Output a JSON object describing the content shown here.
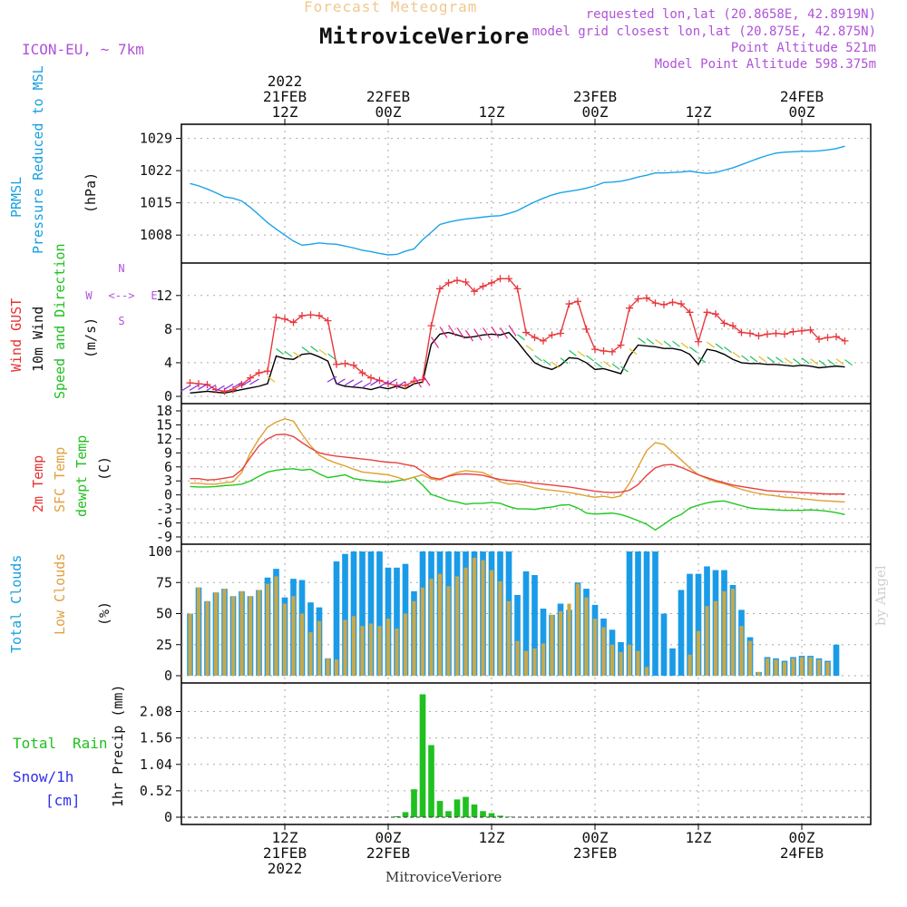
{
  "header": {
    "subtitle": "Forecast Meteogram",
    "title": "MitroviceVeriore",
    "model": "ICON-EU, ~ 7km",
    "requested": "requested lon,lat (20.8658E, 42.8919N)",
    "closest": "closest lon,lat (20.875E, 42.875N)",
    "closest_prefix": "model grid",
    "point_alt": "Point Altitude 521m",
    "model_alt": "Model Point Altitude 598.375m"
  },
  "footer": {
    "location": "MitroviceVeriore",
    "watermark": "by Angel"
  },
  "colors": {
    "pressure": "#1aa3e8",
    "gust": "#e8383c",
    "wind": "#000000",
    "temp2m": "#e84040",
    "sfc": "#e0a030",
    "dewpt": "#20c820",
    "total_clouds": "#1a9be8",
    "low_clouds": "#c8a84a",
    "rain": "#20c020",
    "snow": "#3030e8",
    "label_blue": "#18a0e0",
    "label_red": "#e83030",
    "label_green": "#20c020",
    "label_orange": "#e0a040"
  },
  "time_axis": {
    "top_labels": [
      {
        "lines": [
          "2022",
          "21FEB",
          "12Z"
        ],
        "hour": 12
      },
      {
        "lines": [
          "22FEB",
          "00Z"
        ],
        "hour": 24
      },
      {
        "lines": [
          "12Z"
        ],
        "hour": 36
      },
      {
        "lines": [
          "23FEB",
          "00Z"
        ],
        "hour": 48
      },
      {
        "lines": [
          "12Z"
        ],
        "hour": 60
      },
      {
        "lines": [
          "24FEB",
          "00Z"
        ],
        "hour": 72
      }
    ],
    "bottom_labels": [
      {
        "lines": [
          "12Z",
          "21FEB",
          "2022"
        ],
        "hour": 12
      },
      {
        "lines": [
          "00Z",
          "22FEB"
        ],
        "hour": 24
      },
      {
        "lines": [
          "12Z"
        ],
        "hour": 36
      },
      {
        "lines": [
          "00Z",
          "23FEB"
        ],
        "hour": 48
      },
      {
        "lines": [
          "12Z"
        ],
        "hour": 60
      },
      {
        "lines": [
          "00Z",
          "24FEB"
        ],
        "hour": 72
      }
    ]
  },
  "chart_data": [
    {
      "type": "line",
      "panel": "pressure",
      "labels": [
        "PRMSL",
        "Pressure Reduced to MSL",
        "(hPa)"
      ],
      "yticks": [
        1008,
        1015,
        1022,
        1029
      ],
      "ylim": [
        1003.5,
        1030.5
      ],
      "x": [
        1,
        2,
        3,
        4,
        5,
        6,
        7,
        8,
        9,
        10,
        11,
        12,
        13,
        14,
        15,
        16,
        17,
        18,
        19,
        20,
        21,
        22,
        23,
        24,
        25,
        26,
        27,
        28,
        29,
        30,
        31,
        32,
        33,
        34,
        35,
        36,
        37,
        38,
        39,
        40,
        41,
        42,
        43,
        44,
        45,
        46,
        47,
        48,
        49,
        50,
        51,
        52,
        53,
        54,
        55,
        56,
        57,
        58,
        59,
        60,
        61,
        62,
        63,
        64,
        65,
        66,
        67,
        68,
        69,
        70,
        71,
        72,
        73,
        74,
        75,
        76,
        77
      ],
      "values": [
        1019.2,
        1018.7,
        1018.0,
        1017.2,
        1016.3,
        1016.0,
        1015.4,
        1014.0,
        1012.4,
        1010.7,
        1009.3,
        1008.0,
        1006.7,
        1005.8,
        1006.0,
        1006.3,
        1006.1,
        1006.0,
        1005.6,
        1005.2,
        1004.7,
        1004.4,
        1004.0,
        1003.7,
        1003.8,
        1004.5,
        1005.0,
        1007.0,
        1008.6,
        1010.3,
        1010.8,
        1011.2,
        1011.5,
        1011.7,
        1011.9,
        1012.1,
        1012.2,
        1012.7,
        1013.3,
        1014.3,
        1015.2,
        1016.0,
        1016.7,
        1017.2,
        1017.5,
        1017.8,
        1018.2,
        1018.7,
        1019.4,
        1019.5,
        1019.7,
        1020.1,
        1020.6,
        1021.0,
        1021.5,
        1021.5,
        1021.6,
        1021.7,
        1021.9,
        1021.6,
        1021.4,
        1021.6,
        1022.1,
        1022.6,
        1023.3,
        1024.0,
        1024.7,
        1025.3,
        1025.8,
        1026.0,
        1026.1,
        1026.2,
        1026.2,
        1026.3,
        1026.5,
        1026.8,
        1027.3
      ]
    },
    {
      "type": "line",
      "panel": "wind",
      "labels": [
        "Wind GUST",
        "10m Wind",
        "Speed and Direction",
        "(m/s)"
      ],
      "compass": {
        "n": "N",
        "s": "S",
        "e": "E",
        "w": "W"
      },
      "yticks": [
        0,
        4,
        8,
        12
      ],
      "ylim": [
        0,
        15
      ],
      "x": [
        1,
        2,
        3,
        4,
        5,
        6,
        7,
        8,
        9,
        10,
        11,
        12,
        13,
        14,
        15,
        16,
        17,
        18,
        19,
        20,
        21,
        22,
        23,
        24,
        25,
        26,
        27,
        28,
        29,
        30,
        31,
        32,
        33,
        34,
        35,
        36,
        37,
        38,
        39,
        40,
        41,
        42,
        43,
        44,
        45,
        46,
        47,
        48,
        49,
        50,
        51,
        52,
        53,
        54,
        55,
        56,
        57,
        58,
        59,
        60,
        61,
        62,
        63,
        64,
        65,
        66,
        67,
        68,
        69,
        70,
        71,
        72,
        73,
        74,
        75,
        76,
        77
      ],
      "series": [
        {
          "name": "Wind GUST",
          "values": [
            1.6,
            1.5,
            1.4,
            0.8,
            0.6,
            0.8,
            1.4,
            2.2,
            2.8,
            3.0,
            9.4,
            9.2,
            8.8,
            9.6,
            9.7,
            9.6,
            9.0,
            3.8,
            3.9,
            3.7,
            2.8,
            2.2,
            1.9,
            1.5,
            1.3,
            1.3,
            1.8,
            2.0,
            8.4,
            12.8,
            13.5,
            13.8,
            13.6,
            12.5,
            13.1,
            13.5,
            14.0,
            14.0,
            12.8,
            7.6,
            7.0,
            6.6,
            7.3,
            7.5,
            11.0,
            11.3,
            8.0,
            5.6,
            5.4,
            5.3,
            6.1,
            10.5,
            11.6,
            11.7,
            11.1,
            10.9,
            11.2,
            11.0,
            10.0,
            6.5,
            10.0,
            9.8,
            8.7,
            8.4,
            7.6,
            7.5,
            7.2,
            7.4,
            7.5,
            7.4,
            7.7,
            7.8,
            7.9,
            6.8,
            7.0,
            7.1,
            6.6
          ]
        },
        {
          "name": "10m Wind",
          "values": [
            0.4,
            0.5,
            0.6,
            0.5,
            0.4,
            0.6,
            0.8,
            1.0,
            1.2,
            1.5,
            4.8,
            4.5,
            4.4,
            5.0,
            5.1,
            4.7,
            4.2,
            1.5,
            1.2,
            1.1,
            1.0,
            0.8,
            1.1,
            0.9,
            1.2,
            0.9,
            1.5,
            1.7,
            6.2,
            7.4,
            7.6,
            7.3,
            7.0,
            7.1,
            7.3,
            7.4,
            7.3,
            7.6,
            6.5,
            5.2,
            4.0,
            3.5,
            3.2,
            3.7,
            4.6,
            4.5,
            4.0,
            3.2,
            3.3,
            3.0,
            2.7,
            4.8,
            6.1,
            6.0,
            5.9,
            5.7,
            5.7,
            5.5,
            5.0,
            3.8,
            5.6,
            5.4,
            5.0,
            4.4,
            4.0,
            3.9,
            3.9,
            3.8,
            3.8,
            3.7,
            3.6,
            3.7,
            3.6,
            3.4,
            3.5,
            3.6,
            3.5
          ]
        }
      ]
    },
    {
      "type": "line",
      "panel": "temperature",
      "labels": [
        "2m Temp",
        "SFC Temp",
        "dewpt Temp",
        "(C)"
      ],
      "yticks": [
        -9,
        -6,
        -3,
        0,
        3,
        6,
        9,
        12,
        15,
        18
      ],
      "ylim": [
        -9,
        18
      ],
      "x": [
        1,
        2,
        3,
        4,
        5,
        6,
        7,
        8,
        9,
        10,
        11,
        12,
        13,
        14,
        15,
        16,
        17,
        18,
        19,
        20,
        21,
        22,
        23,
        24,
        25,
        26,
        27,
        28,
        29,
        30,
        31,
        32,
        33,
        34,
        35,
        36,
        37,
        38,
        39,
        40,
        41,
        42,
        43,
        44,
        45,
        46,
        47,
        48,
        49,
        50,
        51,
        52,
        53,
        54,
        55,
        56,
        57,
        58,
        59,
        60,
        61,
        62,
        63,
        64,
        65,
        66,
        67,
        68,
        69,
        70,
        71,
        72,
        73,
        74,
        75,
        76,
        77
      ],
      "series": [
        {
          "name": "2m Temp",
          "values": [
            3.5,
            3.5,
            3.2,
            3.3,
            3.6,
            3.9,
            5.4,
            8.0,
            10.5,
            12.0,
            12.9,
            13.0,
            12.5,
            11.2,
            10.0,
            9.0,
            8.6,
            8.3,
            8.1,
            7.9,
            7.7,
            7.5,
            7.2,
            7.0,
            6.9,
            6.5,
            6.2,
            5.0,
            3.7,
            3.4,
            4.0,
            4.4,
            4.5,
            4.4,
            4.2,
            3.7,
            3.3,
            3.1,
            2.9,
            2.7,
            2.5,
            2.3,
            2.1,
            1.9,
            1.7,
            1.4,
            1.1,
            0.8,
            0.6,
            0.5,
            0.6,
            1.0,
            2.2,
            4.2,
            5.8,
            6.4,
            6.5,
            5.9,
            5.1,
            4.3,
            3.7,
            3.1,
            2.6,
            2.1,
            1.8,
            1.5,
            1.2,
            0.9,
            0.8,
            0.7,
            0.6,
            0.5,
            0.4,
            0.3,
            0.2,
            0.2,
            0.2
          ]
        },
        {
          "name": "SFC Temp",
          "values": [
            2.5,
            2.5,
            2.3,
            2.3,
            2.6,
            2.8,
            4.8,
            9.0,
            12.0,
            14.5,
            15.6,
            16.3,
            15.8,
            13.0,
            10.5,
            8.5,
            7.5,
            6.8,
            6.2,
            5.5,
            4.9,
            4.7,
            4.5,
            4.3,
            3.8,
            3.2,
            3.8,
            4.3,
            3.4,
            3.2,
            4.1,
            4.8,
            5.2,
            5.0,
            4.8,
            3.9,
            2.8,
            2.3,
            2.4,
            2.0,
            1.5,
            1.2,
            1.0,
            0.8,
            0.5,
            0.2,
            -0.2,
            -0.5,
            -0.3,
            -0.6,
            -0.2,
            2.5,
            6.0,
            9.5,
            11.2,
            10.8,
            9.2,
            7.5,
            5.8,
            4.3,
            3.5,
            2.8,
            2.4,
            1.8,
            1.2,
            0.7,
            0.3,
            0.0,
            -0.2,
            -0.5,
            -0.6,
            -0.8,
            -1.0,
            -1.2,
            -1.3,
            -1.4,
            -1.5
          ]
        },
        {
          "name": "dewpt Temp",
          "values": [
            1.8,
            1.7,
            1.7,
            1.8,
            2.0,
            2.1,
            2.3,
            3.0,
            4.0,
            4.9,
            5.3,
            5.5,
            5.6,
            5.3,
            5.5,
            4.5,
            3.7,
            4.0,
            4.3,
            3.5,
            3.2,
            3.0,
            2.8,
            2.7,
            3.0,
            3.3,
            3.8,
            2.1,
            0.1,
            -0.5,
            -1.2,
            -1.5,
            -2.0,
            -1.8,
            -1.8,
            -1.6,
            -1.8,
            -2.5,
            -3.0,
            -3.0,
            -3.1,
            -2.8,
            -2.6,
            -2.2,
            -2.1,
            -2.8,
            -3.9,
            -4.1,
            -4.0,
            -3.9,
            -4.2,
            -4.8,
            -5.5,
            -6.3,
            -7.5,
            -6.3,
            -5.0,
            -4.2,
            -2.8,
            -2.2,
            -1.7,
            -1.4,
            -1.3,
            -1.8,
            -2.3,
            -2.8,
            -3.0,
            -3.1,
            -3.2,
            -3.3,
            -3.3,
            -3.3,
            -3.2,
            -3.3,
            -3.5,
            -3.8,
            -4.2
          ]
        }
      ]
    },
    {
      "type": "bar",
      "panel": "clouds",
      "labels": [
        "Total Clouds",
        "Low Clouds",
        "(%)"
      ],
      "yticks": [
        0,
        25,
        50,
        75,
        100
      ],
      "ylim": [
        0,
        100
      ],
      "x": [
        1,
        2,
        3,
        4,
        5,
        6,
        7,
        8,
        9,
        10,
        11,
        12,
        13,
        14,
        15,
        16,
        17,
        18,
        19,
        20,
        21,
        22,
        23,
        24,
        25,
        26,
        27,
        28,
        29,
        30,
        31,
        32,
        33,
        34,
        35,
        36,
        37,
        38,
        39,
        40,
        41,
        42,
        43,
        44,
        45,
        46,
        47,
        48,
        49,
        50,
        51,
        52,
        53,
        54,
        55,
        56,
        57,
        58,
        59,
        60,
        61,
        62,
        63,
        64,
        65,
        66,
        67,
        68,
        69,
        70,
        71,
        72,
        73,
        74,
        75,
        76,
        77
      ],
      "series": [
        {
          "name": "Total Clouds",
          "values": [
            50,
            71,
            60,
            67,
            70,
            64,
            68,
            64,
            69,
            79,
            86,
            63,
            78,
            77,
            59,
            55,
            14,
            92,
            98,
            100,
            100,
            100,
            100,
            87,
            87,
            90,
            68,
            100,
            100,
            100,
            100,
            100,
            100,
            100,
            100,
            100,
            100,
            100,
            65,
            84,
            81,
            54,
            49,
            58,
            53,
            75,
            70,
            57,
            46,
            37,
            27,
            100,
            100,
            100,
            100,
            50,
            22,
            69,
            82,
            82,
            88,
            85,
            85,
            73,
            53,
            31,
            3,
            15,
            14,
            12,
            15,
            16,
            16,
            14,
            12,
            25,
            0
          ]
        },
        {
          "name": "Low Clouds",
          "values": [
            50,
            71,
            60,
            67,
            70,
            64,
            68,
            64,
            69,
            74,
            80,
            58,
            64,
            50,
            35,
            44,
            14,
            13,
            45,
            48,
            40,
            42,
            40,
            46,
            38,
            50,
            60,
            71,
            78,
            82,
            72,
            80,
            87,
            95,
            93,
            85,
            76,
            60,
            28,
            20,
            22,
            26,
            49,
            52,
            58,
            74,
            63,
            46,
            39,
            25,
            19,
            25,
            20,
            7,
            0,
            0,
            0,
            0,
            17,
            36,
            56,
            60,
            68,
            70,
            40,
            28,
            3,
            14,
            13,
            11,
            14,
            15,
            15,
            13,
            11,
            0,
            0
          ]
        }
      ]
    },
    {
      "type": "bar",
      "panel": "precip",
      "labels": [
        "Total Rain",
        "Snow/1h",
        "[cm]",
        "1hr Precip (mm)"
      ],
      "yticks": [
        "0",
        "0.52",
        "1.04",
        "1.56",
        "2.08"
      ],
      "ylim": [
        0,
        2.5
      ],
      "x": [
        25,
        26,
        27,
        28,
        29,
        30,
        31,
        32,
        33,
        34,
        35,
        36,
        37,
        38
      ],
      "values": [
        0.02,
        0.1,
        0.55,
        2.42,
        1.42,
        0.32,
        0.12,
        0.35,
        0.4,
        0.25,
        0.12,
        0.08,
        0.03,
        0.01
      ]
    }
  ]
}
